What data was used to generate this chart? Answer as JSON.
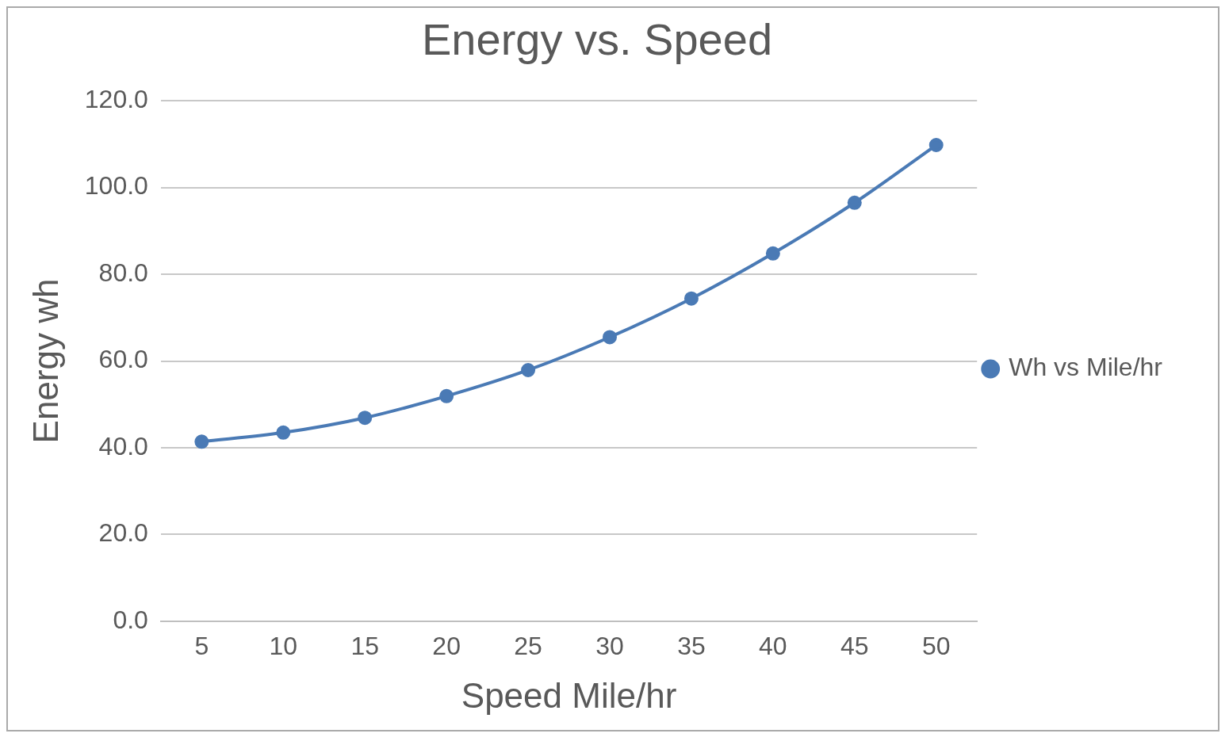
{
  "chart_data": {
    "type": "line",
    "title": "Energy vs. Speed",
    "xlabel": "Speed Mile/hr",
    "ylabel": "Energy wh",
    "categories": [
      "5",
      "10",
      "15",
      "20",
      "25",
      "30",
      "35",
      "40",
      "45",
      "50"
    ],
    "series": [
      {
        "name": "Wh vs Mile/hr",
        "color": "#4a7ab5",
        "values": [
          41.4,
          43.5,
          46.9,
          51.9,
          57.9,
          65.5,
          74.4,
          84.8,
          96.5,
          109.8
        ]
      }
    ],
    "ylim": [
      0,
      120
    ],
    "yticks": [
      {
        "value": 0,
        "label": "0.0"
      },
      {
        "value": 20,
        "label": "20.0"
      },
      {
        "value": 40,
        "label": "40.0"
      },
      {
        "value": 60,
        "label": "60.0"
      },
      {
        "value": 80,
        "label": "80.0"
      },
      {
        "value": 100,
        "label": "100.0"
      },
      {
        "value": 120,
        "label": "120.0"
      }
    ],
    "grid": "y",
    "legend": "right",
    "marker": "circle",
    "line_style": "solid"
  }
}
